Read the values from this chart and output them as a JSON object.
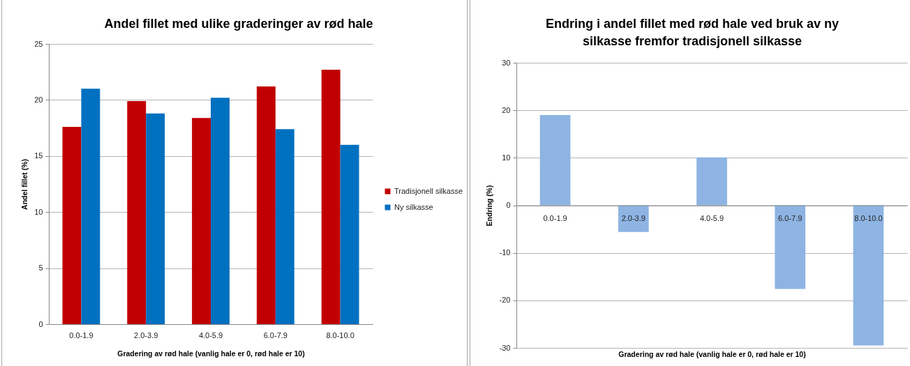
{
  "chart_data": [
    {
      "type": "bar",
      "title": "Andel fillet med ulike graderinger av rød hale",
      "xlabel": "Gradering av rød hale (vanlig hale er 0, rød hale er 10)",
      "ylabel": "Andel fillet (%)",
      "categories": [
        "0.0-1.9",
        "2.0-3.9",
        "4.0-5.9",
        "6.0-7.9",
        "8.0-10.0"
      ],
      "series": [
        {
          "name": "Tradisjonell silkasse",
          "color": "#c00000",
          "values": [
            17.6,
            19.9,
            18.4,
            21.2,
            22.7
          ]
        },
        {
          "name": "Ny silkasse",
          "color": "#0070c0",
          "values": [
            21.0,
            18.8,
            20.2,
            17.4,
            16.0
          ]
        }
      ],
      "ylim": [
        0,
        25
      ],
      "yticks": [
        0,
        5,
        10,
        15,
        20,
        25
      ],
      "grid": "y",
      "legend": "right"
    },
    {
      "type": "bar",
      "title": "Endring i andel fillet med rød hale ved bruk av ny silkasse fremfor tradisjonell silkasse",
      "xlabel": "Gradering av rød hale (vanlig hale er 0, rød hale er 10)",
      "ylabel": "Endring (%)",
      "categories": [
        "0.0-1.9",
        "2.0-3.9",
        "4.0-5.9",
        "6.0-7.9",
        "8.0-10.0"
      ],
      "values": [
        19.0,
        -5.6,
        10.1,
        -17.6,
        -29.5
      ],
      "color": "#8eb4e3",
      "ylim": [
        -30,
        30
      ],
      "yticks": [
        -30,
        -20,
        -10,
        0,
        10,
        20,
        30
      ],
      "grid": "y"
    }
  ]
}
